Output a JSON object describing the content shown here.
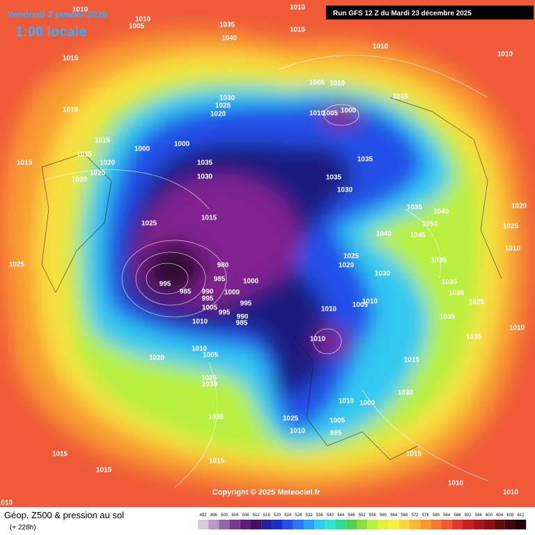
{
  "header": {
    "valid_date": "Vendredi 2 janvier 2026",
    "local_time": "1:00 locale",
    "run": "Run GFS 12 Z du Mardi 23 décembre 2025"
  },
  "footer": {
    "title": "Géop. Z500 & pression au sol",
    "lead": "(+ 228h)",
    "copyright": "Copyright © 2025 Meteociel.fr"
  },
  "legend": {
    "values": [
      492,
      496,
      500,
      504,
      508,
      512,
      516,
      520,
      524,
      528,
      532,
      536,
      540,
      544,
      548,
      552,
      556,
      560,
      564,
      568,
      572,
      576,
      580,
      584,
      588,
      592,
      596,
      600,
      604,
      608,
      612
    ],
    "colors": [
      "#d8c8e0",
      "#b898c8",
      "#9068a8",
      "#783890",
      "#602078",
      "#481060",
      "#2020a0",
      "#1830c8",
      "#2050e8",
      "#2878f0",
      "#30a0f0",
      "#30c8f0",
      "#30e0d0",
      "#30d890",
      "#50d050",
      "#88e040",
      "#b8f040",
      "#e0f040",
      "#f8f040",
      "#f8d838",
      "#f8b830",
      "#f89830",
      "#f87830",
      "#f05830",
      "#e03828",
      "#c82020",
      "#a81818",
      "#881010",
      "#600c0c",
      "#400808",
      "#200404"
    ]
  },
  "isobar_labels": [
    1010,
    1010,
    1010,
    1005,
    1035,
    1015,
    1040,
    1015,
    1010,
    1010,
    1005,
    1010,
    1015,
    1030,
    1025,
    1020,
    1010,
    1005,
    1000,
    1010,
    1015,
    1000,
    1000,
    1015,
    1020,
    1015,
    1020,
    1020,
    1035,
    1035,
    1030,
    1035,
    1030,
    1035,
    1040,
    1020,
    1015,
    1025,
    1025,
    1050,
    1045,
    1040,
    1010,
    1025,
    1020,
    1035,
    1030,
    1025,
    980,
    985,
    1000,
    995,
    985,
    990,
    995,
    1000,
    1005,
    995,
    995,
    990,
    985,
    1010,
    1035,
    1035,
    1025,
    1010,
    1005,
    1010,
    1035,
    1010,
    1010,
    1035,
    1010,
    1005,
    1020,
    1015,
    1025,
    1030,
    1030,
    1010,
    1000,
    1035,
    1025,
    1005,
    1010,
    995,
    1015,
    1015,
    1015,
    1015,
    1010,
    1010,
    1010
  ]
}
